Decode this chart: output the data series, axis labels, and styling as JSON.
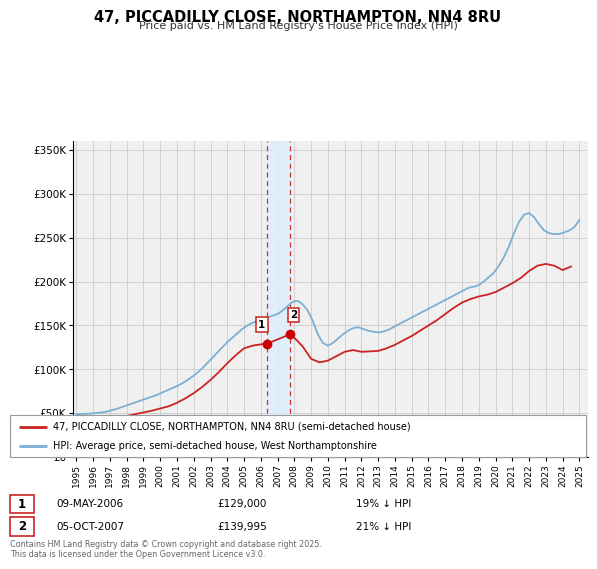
{
  "title": "47, PICCADILLY CLOSE, NORTHAMPTON, NN4 8RU",
  "subtitle": "Price paid vs. HM Land Registry's House Price Index (HPI)",
  "legend_label_red": "47, PICCADILLY CLOSE, NORTHAMPTON, NN4 8RU (semi-detached house)",
  "legend_label_blue": "HPI: Average price, semi-detached house, West Northamptonshire",
  "footer": "Contains HM Land Registry data © Crown copyright and database right 2025.\nThis data is licensed under the Open Government Licence v3.0.",
  "sale1_date": "09-MAY-2006",
  "sale1_price": "£129,000",
  "sale1_hpi": "19% ↓ HPI",
  "sale2_date": "05-OCT-2007",
  "sale2_price": "£139,995",
  "sale2_hpi": "21% ↓ HPI",
  "sale1_year": 2006.35,
  "sale2_year": 2007.75,
  "sale1_price_val": 129000,
  "sale2_price_val": 139995,
  "vline_color": "#cc3333",
  "vshade_color": "#ddeeff",
  "dot_color_red": "#cc0000",
  "line_color_red": "#cc2222",
  "line_color_blue": "#7ab0d4",
  "background_color": "#f0f0f0",
  "grid_color": "#cccccc",
  "ylim": [
    0,
    360000
  ],
  "xlim_start": 1994.8,
  "xlim_end": 2025.5,
  "hpi_years": [
    1995.0,
    1995.3,
    1995.6,
    1995.9,
    1996.2,
    1996.5,
    1996.8,
    1997.1,
    1997.4,
    1997.7,
    1998.0,
    1998.3,
    1998.6,
    1998.9,
    1999.2,
    1999.5,
    1999.8,
    2000.1,
    2000.4,
    2000.7,
    2001.0,
    2001.3,
    2001.6,
    2001.9,
    2002.2,
    2002.5,
    2002.8,
    2003.1,
    2003.4,
    2003.7,
    2004.0,
    2004.3,
    2004.6,
    2004.9,
    2005.2,
    2005.5,
    2005.8,
    2006.1,
    2006.4,
    2006.7,
    2007.0,
    2007.3,
    2007.6,
    2007.9,
    2008.2,
    2008.5,
    2008.8,
    2009.1,
    2009.4,
    2009.7,
    2010.0,
    2010.3,
    2010.6,
    2010.9,
    2011.2,
    2011.5,
    2011.8,
    2012.1,
    2012.4,
    2012.7,
    2013.0,
    2013.3,
    2013.6,
    2013.9,
    2014.2,
    2014.5,
    2014.8,
    2015.1,
    2015.4,
    2015.7,
    2016.0,
    2016.3,
    2016.6,
    2016.9,
    2017.2,
    2017.5,
    2017.8,
    2018.1,
    2018.4,
    2018.7,
    2019.0,
    2019.3,
    2019.6,
    2019.9,
    2020.2,
    2020.5,
    2020.8,
    2021.1,
    2021.4,
    2021.7,
    2022.0,
    2022.3,
    2022.6,
    2022.9,
    2023.2,
    2023.5,
    2023.8,
    2024.1,
    2024.4,
    2024.7,
    2025.0
  ],
  "hpi_values": [
    49000,
    49200,
    49500,
    49800,
    50500,
    51000,
    52000,
    53500,
    55000,
    57000,
    59000,
    61000,
    63000,
    65000,
    67000,
    69000,
    71000,
    73500,
    76000,
    78500,
    81000,
    84000,
    87500,
    91500,
    96000,
    101000,
    107000,
    113000,
    119000,
    125000,
    131000,
    136000,
    141000,
    146000,
    150000,
    153000,
    155000,
    157000,
    159000,
    161000,
    163000,
    167000,
    172000,
    177000,
    178000,
    174000,
    167000,
    155000,
    140000,
    130000,
    127000,
    130000,
    135000,
    140000,
    144000,
    147000,
    148000,
    146000,
    144000,
    143000,
    142000,
    143000,
    145000,
    148000,
    151000,
    154000,
    157000,
    160000,
    163000,
    166000,
    169000,
    172000,
    175000,
    178000,
    181000,
    184000,
    187000,
    190000,
    193000,
    194000,
    196000,
    200000,
    205000,
    210000,
    218000,
    228000,
    240000,
    255000,
    268000,
    276000,
    278000,
    273000,
    265000,
    258000,
    255000,
    254000,
    254000,
    256000,
    258000,
    262000,
    270000
  ],
  "price_years": [
    1995.0,
    1995.5,
    1996.0,
    1996.5,
    1997.0,
    1997.5,
    1998.0,
    1998.5,
    1999.0,
    1999.5,
    2000.0,
    2000.5,
    2001.0,
    2001.5,
    2002.0,
    2002.5,
    2003.0,
    2003.5,
    2004.0,
    2004.5,
    2005.0,
    2005.5,
    2006.0,
    2006.35,
    2007.75,
    2008.0,
    2008.5,
    2009.0,
    2009.5,
    2010.0,
    2010.5,
    2011.0,
    2011.5,
    2012.0,
    2012.5,
    2013.0,
    2013.5,
    2014.0,
    2014.5,
    2015.0,
    2015.5,
    2016.0,
    2016.5,
    2017.0,
    2017.5,
    2018.0,
    2018.5,
    2019.0,
    2019.5,
    2020.0,
    2020.5,
    2021.0,
    2021.5,
    2022.0,
    2022.5,
    2023.0,
    2023.5,
    2024.0,
    2024.5
  ],
  "price_values": [
    43000,
    43200,
    43500,
    44000,
    44500,
    45500,
    47000,
    49000,
    51000,
    53000,
    55500,
    58000,
    62000,
    67000,
    73000,
    80000,
    88000,
    97000,
    107000,
    116000,
    124000,
    127000,
    128500,
    129000,
    139995,
    136000,
    126000,
    112000,
    108000,
    110000,
    115000,
    120000,
    122000,
    120000,
    120500,
    121000,
    124000,
    128000,
    133000,
    138000,
    144000,
    150000,
    156000,
    163000,
    170000,
    176000,
    180000,
    183000,
    185000,
    188000,
    193000,
    198000,
    204000,
    212000,
    218000,
    220000,
    218000,
    213000,
    217000
  ]
}
